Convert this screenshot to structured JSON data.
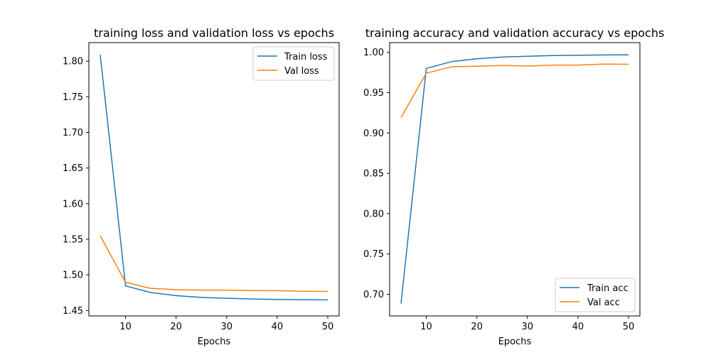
{
  "colors": {
    "train": "#1f77b4",
    "val": "#ff7f0e"
  },
  "chart_data": [
    {
      "type": "line",
      "title": "training loss and validation loss vs epochs",
      "xlabel": "Epochs",
      "ylabel": "",
      "xlim": [
        2.75,
        52.25
      ],
      "ylim": [
        1.4423,
        1.8261
      ],
      "xticks": [
        10,
        20,
        30,
        40,
        50
      ],
      "yticks": [
        1.45,
        1.5,
        1.55,
        1.6,
        1.65,
        1.7,
        1.75,
        1.8
      ],
      "ytick_labels": [
        "1.45",
        "1.50",
        "1.55",
        "1.60",
        "1.65",
        "1.70",
        "1.75",
        "1.80"
      ],
      "legend": "upper right",
      "x": [
        5,
        10,
        15,
        20,
        25,
        30,
        35,
        40,
        45,
        50
      ],
      "series": [
        {
          "name": "Train loss",
          "values": [
            1.809,
            1.4845,
            1.4752,
            1.4708,
            1.4684,
            1.4671,
            1.4661,
            1.4655,
            1.4651,
            1.4648
          ]
        },
        {
          "name": "Val loss",
          "values": [
            1.5548,
            1.4895,
            1.481,
            1.4792,
            1.4786,
            1.4786,
            1.4779,
            1.4778,
            1.477,
            1.4767
          ]
        }
      ]
    },
    {
      "type": "line",
      "title": "training accuracy and validation accuracy vs epochs",
      "xlabel": "Epochs",
      "ylabel": "",
      "xlim": [
        2.75,
        52.25
      ],
      "ylim": [
        0.6731,
        1.0121
      ],
      "xticks": [
        10,
        20,
        30,
        40,
        50
      ],
      "yticks": [
        0.7,
        0.75,
        0.8,
        0.85,
        0.9,
        0.95,
        1.0
      ],
      "ytick_labels": [
        "0.70",
        "0.75",
        "0.80",
        "0.85",
        "0.90",
        "0.95",
        "1.00"
      ],
      "legend": "lower right",
      "x": [
        5,
        10,
        15,
        20,
        25,
        30,
        35,
        40,
        45,
        50
      ],
      "series": [
        {
          "name": "Train acc",
          "values": [
            0.6885,
            0.98,
            0.9885,
            0.9921,
            0.9942,
            0.9952,
            0.996,
            0.9964,
            0.9968,
            0.9969
          ]
        },
        {
          "name": "Val acc",
          "values": [
            0.919,
            0.9742,
            0.9821,
            0.9828,
            0.9837,
            0.983,
            0.9842,
            0.9843,
            0.9855,
            0.9852
          ]
        }
      ]
    }
  ]
}
